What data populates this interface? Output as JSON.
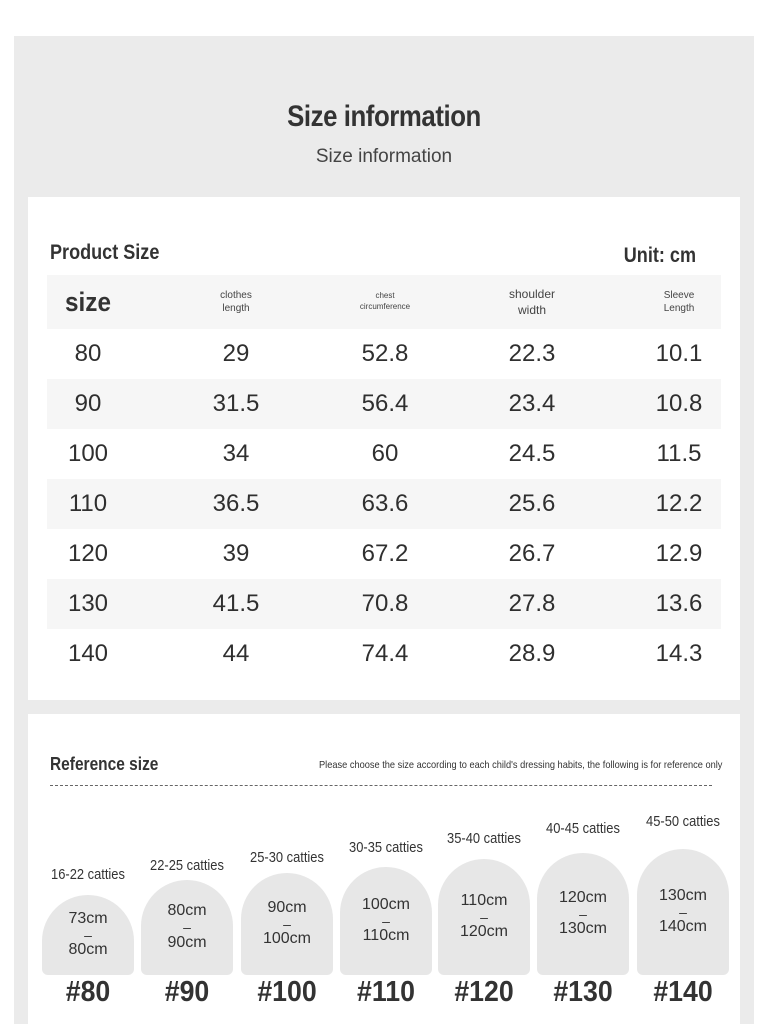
{
  "header": {
    "title": "Size information",
    "subtitle": "Size information"
  },
  "product_size": {
    "title": "Product Size",
    "unit": "Unit: cm",
    "columns": [
      [
        "size"
      ],
      [
        "clothes",
        "length"
      ],
      [
        "chest",
        "circumference"
      ],
      [
        "shoulder",
        "width"
      ],
      [
        "Sleeve",
        "Length"
      ]
    ],
    "rows": [
      [
        "80",
        "29",
        "52.8",
        "22.3",
        "10.1"
      ],
      [
        "90",
        "31.5",
        "56.4",
        "23.4",
        "10.8"
      ],
      [
        "100",
        "34",
        "60",
        "24.5",
        "11.5"
      ],
      [
        "110",
        "36.5",
        "63.6",
        "25.6",
        "12.2"
      ],
      [
        "120",
        "39",
        "67.2",
        "26.7",
        "12.9"
      ],
      [
        "130",
        "41.5",
        "70.8",
        "27.8",
        "13.6"
      ],
      [
        "140",
        "44",
        "74.4",
        "28.9",
        "14.3"
      ]
    ]
  },
  "reference": {
    "title": "Reference size",
    "note": "Please choose the size according to each child's dressing habits, the following is for reference only",
    "items": [
      {
        "weight": "16-22 catties",
        "height_min": "73cm",
        "sep": "–",
        "height_max": "80cm",
        "tag": "#80"
      },
      {
        "weight": "22-25 catties",
        "height_min": "80cm",
        "sep": "–",
        "height_max": "90cm",
        "tag": "#90"
      },
      {
        "weight": "25-30 catties",
        "height_min": "90cm",
        "sep": "–",
        "height_max": "100cm",
        "tag": "#100"
      },
      {
        "weight": "30-35 catties",
        "height_min": "100cm",
        "sep": "–",
        "height_max": "110cm",
        "tag": "#110"
      },
      {
        "weight": "35-40 catties",
        "height_min": "110cm",
        "sep": "–",
        "height_max": "120cm",
        "tag": "#120"
      },
      {
        "weight": "40-45 catties",
        "height_min": "120cm",
        "sep": "–",
        "height_max": "130cm",
        "tag": "#130"
      },
      {
        "weight": "45-50 catties",
        "height_min": "130cm",
        "sep": "–",
        "height_max": "140cm",
        "tag": "#140"
      }
    ]
  }
}
